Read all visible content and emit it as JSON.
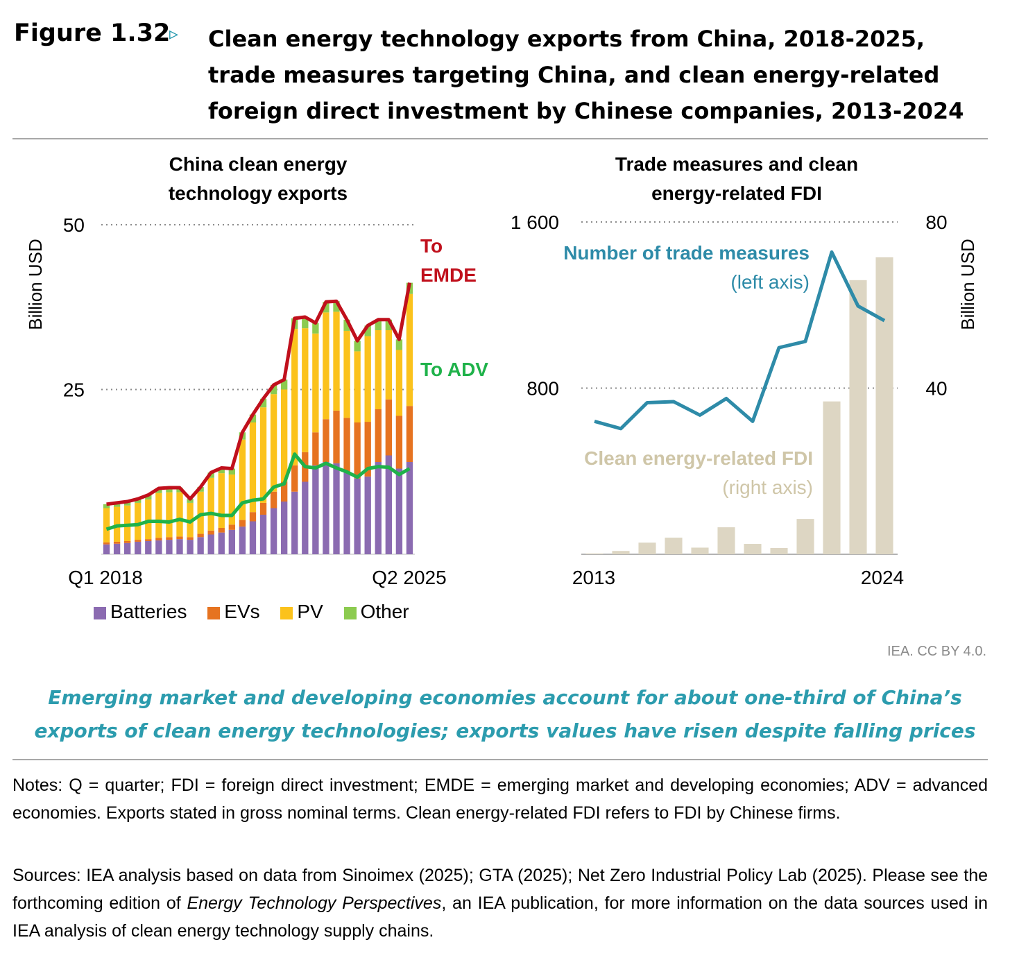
{
  "figure": {
    "label": "Figure 1.32",
    "arrow": "▹",
    "title": "Clean energy technology exports from China, 2018-2025, trade measures targeting China, and clean energy-related foreign direct investment by Chinese companies, 2013-2024",
    "credit": "IEA. CC BY 4.0.",
    "subtitle": "Emerging market and developing economies account for about one-third of China’s exports of clean energy technologies; exports values have risen despite falling prices",
    "notes": "Notes: Q = quarter; FDI = foreign direct investment; EMDE = emerging market and developing economies; ADV = advanced economies. Exports stated in gross nominal terms. Clean energy-related FDI refers to FDI by Chinese firms.",
    "sources_prefix": "Sources: IEA analysis based on data from Sinoimex (2025); GTA (2025); Net Zero Industrial Policy Lab (2025). Please see the forthcoming edition of ",
    "sources_italic": "Energy Technology Perspectives",
    "sources_suffix": ", an IEA publication, for more information on the data sources used in IEA analysis of clean energy technology supply chains."
  },
  "colors": {
    "batteries": "#8B6BB1",
    "evs": "#E67320",
    "pv": "#FBC21C",
    "other": "#8CCB4F",
    "emde_line": "#C0101C",
    "adv_line": "#1FB24A",
    "trade_line": "#2E8BA8",
    "fdi_bars": "#DDD6C3",
    "grid": "#8a8a8a",
    "subtitle": "#2c9cae"
  },
  "chart_data": [
    {
      "type": "bar",
      "stacked": true,
      "title": "China clean energy technology exports",
      "ylabel": "Billion USD",
      "ylim": [
        0,
        50
      ],
      "yticks": [
        25,
        50
      ],
      "xtick_labels": [
        "Q1 2018",
        "Q2 2025"
      ],
      "categories": [
        "Q1 2018",
        "Q2 2018",
        "Q3 2018",
        "Q4 2018",
        "Q1 2019",
        "Q2 2019",
        "Q3 2019",
        "Q4 2019",
        "Q1 2020",
        "Q2 2020",
        "Q3 2020",
        "Q4 2020",
        "Q1 2021",
        "Q2 2021",
        "Q3 2021",
        "Q4 2021",
        "Q1 2022",
        "Q2 2022",
        "Q3 2022",
        "Q4 2022",
        "Q1 2023",
        "Q2 2023",
        "Q3 2023",
        "Q4 2023",
        "Q1 2024",
        "Q2 2024",
        "Q3 2024",
        "Q4 2024",
        "Q1 2025",
        "Q2 2025"
      ],
      "series": [
        {
          "name": "Batteries",
          "values": [
            1.5,
            1.6,
            1.7,
            1.9,
            2.0,
            2.1,
            2.2,
            2.3,
            2.2,
            2.6,
            3.0,
            3.3,
            3.7,
            4.2,
            5.0,
            6.0,
            7.0,
            8.0,
            9.5,
            11.0,
            13.5,
            14.0,
            13.8,
            12.5,
            11.5,
            11.8,
            14.0,
            15.0,
            13.0,
            14.0
          ]
        },
        {
          "name": "EVs",
          "values": [
            0.3,
            0.3,
            0.3,
            0.3,
            0.3,
            0.4,
            0.4,
            0.4,
            0.4,
            0.5,
            0.6,
            0.7,
            0.8,
            1.0,
            1.4,
            1.8,
            2.5,
            3.0,
            4.0,
            4.5,
            5.0,
            6.5,
            8.0,
            8.2,
            8.5,
            8.3,
            8.0,
            8.5,
            8.0,
            8.5
          ]
        },
        {
          "name": "PV",
          "values": [
            5.2,
            5.3,
            5.4,
            5.6,
            6.0,
            6.8,
            6.8,
            6.7,
            5.2,
            6.4,
            8.0,
            8.3,
            7.6,
            12.2,
            13.6,
            14.5,
            14.8,
            14.0,
            20.7,
            18.8,
            15.0,
            16.2,
            15.0,
            13.2,
            10.8,
            13.0,
            12.0,
            10.5,
            10.0,
            17.0
          ]
        },
        {
          "name": "Other",
          "values": [
            0.6,
            0.6,
            0.6,
            0.6,
            0.7,
            0.7,
            0.7,
            0.7,
            0.6,
            0.7,
            0.8,
            0.8,
            0.9,
            1.1,
            1.2,
            1.3,
            1.4,
            1.5,
            1.6,
            1.7,
            1.6,
            1.6,
            1.6,
            1.7,
            1.6,
            1.6,
            1.6,
            1.6,
            1.6,
            1.7
          ]
        }
      ],
      "lines": [
        {
          "name": "To EMDE",
          "values": [
            7.6,
            7.8,
            8.0,
            8.4,
            9.0,
            10.5,
            11.0,
            10.6,
            8.8,
            10.4,
            13.0,
            14.2,
            14.3,
            18.7,
            22.0,
            24.6,
            26.0,
            27.4,
            33.0,
            36.2,
            36.0,
            39.3,
            38.3,
            35.6,
            32.0,
            34.2,
            35.6,
            35.4,
            32.5,
            41.2
          ]
        },
        {
          "name": "To ADV",
          "values": [
            3.8,
            4.3,
            4.4,
            4.5,
            5.0,
            5.5,
            5.8,
            5.8,
            5.3,
            6.2,
            6.8,
            7.0,
            7.2,
            8.0,
            9.0,
            9.4,
            10.5,
            11.6,
            12.4,
            13.5,
            14.0,
            14.8,
            13.0,
            12.5,
            11.3,
            12.5,
            13.3,
            13.0,
            12.0,
            13.0
          ]
        }
      ],
      "annotations": [
        "To EMDE",
        "To ADV"
      ]
    },
    {
      "type": "bar+line",
      "title": "Trade measures and clean energy-related FDI",
      "left_ylim": [
        0,
        1600
      ],
      "left_yticks": [
        800,
        1600
      ],
      "left_ytick_labels": [
        "800",
        "1 600"
      ],
      "right_ylim": [
        0,
        80
      ],
      "right_yticks": [
        40,
        80
      ],
      "right_ylabel": "Billion USD",
      "categories": [
        2013,
        2014,
        2015,
        2016,
        2017,
        2018,
        2019,
        2020,
        2021,
        2022,
        2023,
        2024
      ],
      "xtick_labels": [
        "2013",
        "2024"
      ],
      "series": [
        {
          "name": "Number of trade measures",
          "axis_note": "(left axis)",
          "axis": "left",
          "values": [
            640,
            605,
            730,
            735,
            670,
            750,
            640,
            995,
            1025,
            1455,
            1195,
            1125
          ]
        },
        {
          "name": "Clean energy-related FDI",
          "axis_note": "(right axis)",
          "axis": "right",
          "values": [
            0.2,
            0.8,
            2.8,
            4.0,
            1.6,
            6.5,
            2.5,
            1.5,
            8.5,
            36.8,
            66.0,
            71.5
          ]
        }
      ]
    }
  ],
  "legend": [
    "Batteries",
    "EVs",
    "PV",
    "Other"
  ]
}
